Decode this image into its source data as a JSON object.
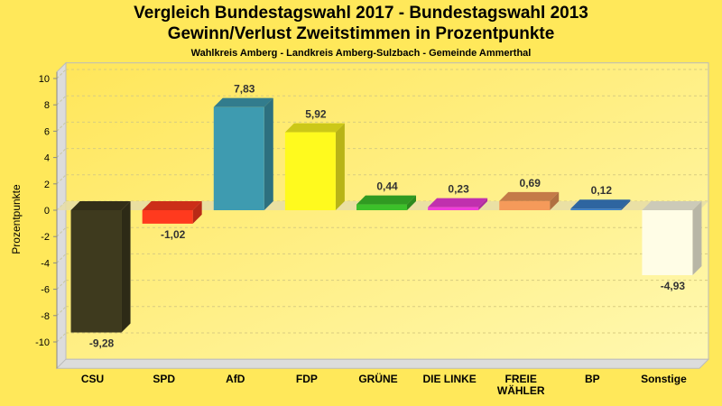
{
  "title": "Vergleich Bundestagswahl 2017 - Bundestagswahl 2013",
  "subtitle": "Gewinn/Verlust Zweitstimmen in Prozentpunkte",
  "subsubtitle": "Wahlkreis Amberg - Landkreis Amberg-Sulzbach - Gemeinde Ammerthal",
  "chart_data": {
    "type": "bar",
    "title": "Vergleich Bundestagswahl 2017 - Bundestagswahl 2013",
    "subtitle": "Gewinn/Verlust Zweitstimmen in Prozentpunkte",
    "xlabel": "",
    "ylabel": "Prozentpunkte",
    "ylim": [
      -12,
      10.5
    ],
    "yticks": [
      10,
      8,
      6,
      4,
      2,
      0,
      -2,
      -4,
      -6,
      -8,
      -10
    ],
    "grid": true,
    "legend": "none",
    "categories": [
      "CSU",
      "SPD",
      "AfD",
      "FDP",
      "GRÜNE",
      "DIE LINKE",
      "FREIE WÄHLER",
      "BP",
      "Sonstige"
    ],
    "category_lines": [
      [
        "CSU"
      ],
      [
        "SPD"
      ],
      [
        "AfD"
      ],
      [
        "FDP"
      ],
      [
        "GRÜNE"
      ],
      [
        "DIE LINKE"
      ],
      [
        "FREIE",
        "WÄHLER"
      ],
      [
        "BP"
      ],
      [
        "Sonstige"
      ]
    ],
    "values": [
      -9.28,
      -1.02,
      7.83,
      5.92,
      0.44,
      0.23,
      0.69,
      0.12,
      -4.93
    ],
    "value_labels": [
      "-9,28",
      "-1,02",
      "7,83",
      "5,92",
      "0,44",
      "0,23",
      "0,69",
      "0,12",
      "-4,93"
    ],
    "colors": [
      "#3E3A1E",
      "#FF3A1E",
      "#3E9BB0",
      "#FFFA1E",
      "#3CC02A",
      "#F03CDA",
      "#F59A5A",
      "#3A7EC8",
      "#FFFDE6"
    ]
  }
}
